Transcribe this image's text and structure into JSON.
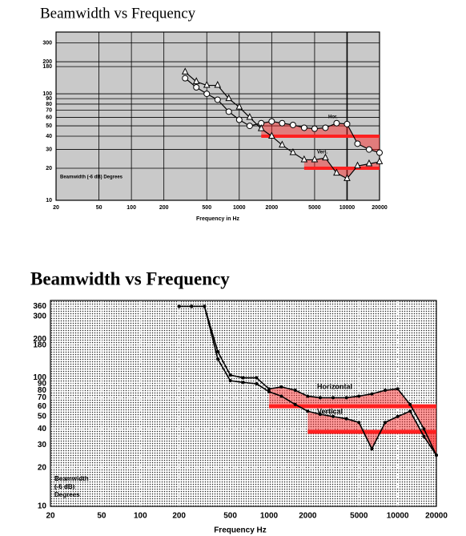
{
  "chart_data": [
    {
      "type": "line",
      "title": "Beamwidth vs Frequency",
      "x_label": "Frequency in Hz",
      "xlog": true,
      "ylog": true,
      "grid": true,
      "background": "#c9c9c9",
      "grid_color": "#000000",
      "xlim": [
        20,
        20000
      ],
      "ylim": [
        10,
        380
      ],
      "xticks": [
        20,
        50,
        100,
        200,
        500,
        1000,
        2000,
        5000,
        10000,
        20000
      ],
      "yticks": [
        10,
        20,
        30,
        40,
        50,
        60,
        70,
        80,
        90,
        100,
        180,
        200,
        300
      ],
      "annotations": [
        "Beamwidth (-6 dB) Degrees",
        "Hor.",
        "Vert."
      ],
      "x": [
        315,
        400,
        500,
        630,
        800,
        1000,
        1250,
        1600,
        2000,
        2500,
        3150,
        4000,
        5000,
        6300,
        8000,
        10000,
        12500,
        16000,
        20000
      ],
      "series": [
        {
          "name": "Hor.",
          "color": "#000000",
          "marker": "circle",
          "values": [
            140,
            115,
            100,
            88,
            68,
            57,
            50,
            53,
            55,
            53,
            51,
            48,
            47,
            48,
            53,
            52,
            34,
            30,
            28
          ],
          "band": {
            "value": 40,
            "x": [
              1600,
              20000
            ],
            "color": "#ff2020"
          }
        },
        {
          "name": "Vert.",
          "color": "#000000",
          "marker": "triangle",
          "values": [
            160,
            130,
            120,
            120,
            90,
            75,
            60,
            47,
            40,
            33,
            28,
            24,
            24,
            25,
            18,
            16,
            21,
            22,
            23
          ],
          "band": {
            "value": 20,
            "x": [
              4000,
              20000
            ],
            "color": "#ff2020"
          }
        }
      ]
    },
    {
      "type": "line",
      "title": "Beamwidth vs Frequency",
      "x_label": "Frequency Hz",
      "xlog": true,
      "ylog": true,
      "grid": true,
      "background": "dots",
      "grid_color": "#ffffff",
      "xlim": [
        20,
        20000
      ],
      "ylim": [
        10,
        400
      ],
      "xticks": [
        20,
        50,
        100,
        200,
        500,
        1000,
        2000,
        5000,
        10000,
        20000
      ],
      "yticks": [
        10,
        20,
        30,
        40,
        50,
        60,
        70,
        80,
        90,
        100,
        180,
        200,
        300,
        360
      ],
      "annotations": [
        "Beamwidth",
        "(-6 dB)",
        "Degrees",
        "Horizontal",
        "Vertical"
      ],
      "x": [
        200,
        250,
        315,
        400,
        500,
        630,
        800,
        1000,
        1250,
        1600,
        2000,
        2500,
        3150,
        4000,
        5000,
        6300,
        8000,
        10000,
        12500,
        16000,
        20000
      ],
      "series": [
        {
          "name": "Horizontal",
          "color": "#000000",
          "marker": "dot",
          "values": [
            360,
            360,
            360,
            160,
            105,
            100,
            100,
            82,
            85,
            80,
            72,
            70,
            70,
            70,
            72,
            75,
            80,
            82,
            62,
            40,
            25
          ],
          "band": {
            "value": 60,
            "x": [
              1000,
              20000
            ],
            "color": "#ff2020"
          }
        },
        {
          "name": "Vertical",
          "color": "#000000",
          "marker": "dot",
          "values": [
            360,
            360,
            360,
            140,
            95,
            92,
            90,
            78,
            72,
            62,
            55,
            52,
            50,
            48,
            45,
            28,
            45,
            50,
            55,
            35,
            25
          ],
          "band": {
            "value": 38,
            "x": [
              2000,
              20000
            ],
            "color": "#ff2020"
          }
        }
      ]
    }
  ]
}
